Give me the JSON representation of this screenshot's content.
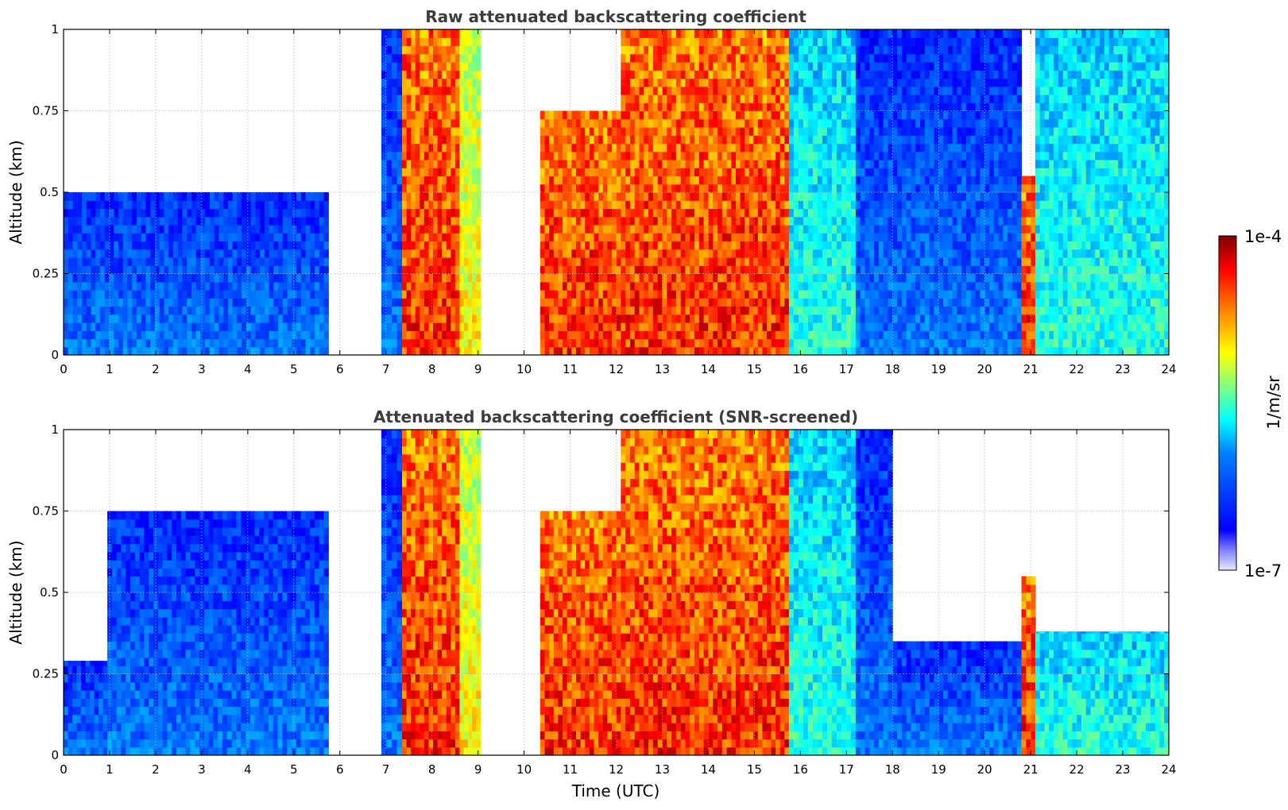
{
  "chart_data": [
    {
      "type": "heatmap",
      "title": "Raw attenuated backscattering coefficient",
      "xlabel": "",
      "ylabel": "Altitude (km)",
      "xlim": [
        0,
        24
      ],
      "ylim": [
        0,
        1
      ],
      "x_ticks": [
        "0",
        "1",
        "2",
        "3",
        "4",
        "5",
        "6",
        "7",
        "8",
        "9",
        "10",
        "11",
        "12",
        "13",
        "14",
        "15",
        "16",
        "17",
        "18",
        "19",
        "20",
        "21",
        "22",
        "23",
        "24"
      ],
      "y_ticks": [
        "0",
        "0.25",
        "0.5",
        "0.75",
        "1"
      ],
      "grid": true,
      "no_data_gaps_utc": [
        [
          5.75,
          6.9
        ],
        [
          9.05,
          10.35
        ]
      ],
      "regimes": [
        {
          "x": [
            0.0,
            5.75
          ],
          "level": "low",
          "ceiling_km": 0.5
        },
        {
          "x": [
            6.9,
            7.35
          ],
          "level": "low",
          "ceiling_km": 1.0
        },
        {
          "x": [
            7.35,
            8.6
          ],
          "level": "high",
          "ceiling_km": 1.0
        },
        {
          "x": [
            8.6,
            9.05
          ],
          "level": "medium-high",
          "ceiling_km": 1.0
        },
        {
          "x": [
            10.35,
            12.1
          ],
          "level": "high",
          "ceiling_km": 0.75
        },
        {
          "x": [
            12.1,
            14.5
          ],
          "level": "high",
          "ceiling_km": 1.0
        },
        {
          "x": [
            14.5,
            15.75
          ],
          "level": "high",
          "ceiling_km": 1.0
        },
        {
          "x": [
            15.75,
            17.2
          ],
          "level": "low-medium",
          "ceiling_km": 1.0
        },
        {
          "x": [
            17.2,
            20.8
          ],
          "level": "low",
          "ceiling_km": 1.0
        },
        {
          "x": [
            20.8,
            21.1
          ],
          "level": "high",
          "ceiling_km": 0.55
        },
        {
          "x": [
            21.1,
            24.0
          ],
          "level": "low-medium",
          "ceiling_km": 1.0
        }
      ]
    },
    {
      "type": "heatmap",
      "title": "Attenuated backscattering coefficient (SNR-screened)",
      "xlabel": "Time (UTC)",
      "ylabel": "Altitude (km)",
      "xlim": [
        0,
        24
      ],
      "ylim": [
        0,
        1
      ],
      "x_ticks": [
        "0",
        "1",
        "2",
        "3",
        "4",
        "5",
        "6",
        "7",
        "8",
        "9",
        "10",
        "11",
        "12",
        "13",
        "14",
        "15",
        "16",
        "17",
        "18",
        "19",
        "20",
        "21",
        "22",
        "23",
        "24"
      ],
      "y_ticks": [
        "0",
        "0.25",
        "0.5",
        "0.75",
        "1"
      ],
      "grid": true,
      "no_data_gaps_utc": [
        [
          5.75,
          6.9
        ],
        [
          9.05,
          10.35
        ]
      ],
      "regimes": [
        {
          "x": [
            0.0,
            0.95
          ],
          "level": "low",
          "ceiling_km": 0.29
        },
        {
          "x": [
            0.95,
            5.75
          ],
          "level": "low",
          "ceiling_km": 0.75
        },
        {
          "x": [
            6.9,
            7.35
          ],
          "level": "low",
          "ceiling_km": 1.0
        },
        {
          "x": [
            7.35,
            8.6
          ],
          "level": "high",
          "ceiling_km": 1.0
        },
        {
          "x": [
            8.6,
            9.05
          ],
          "level": "medium-high",
          "ceiling_km": 1.0
        },
        {
          "x": [
            10.35,
            12.1
          ],
          "level": "high",
          "ceiling_km": 0.75
        },
        {
          "x": [
            12.1,
            14.5
          ],
          "level": "high",
          "ceiling_km": 1.0
        },
        {
          "x": [
            14.5,
            15.75
          ],
          "level": "high",
          "ceiling_km": 1.0
        },
        {
          "x": [
            15.75,
            17.2
          ],
          "level": "low-medium",
          "ceiling_km": 1.0
        },
        {
          "x": [
            17.2,
            18.0
          ],
          "level": "low",
          "ceiling_km": 1.0
        },
        {
          "x": [
            18.0,
            20.8
          ],
          "level": "low",
          "ceiling_km": 0.35
        },
        {
          "x": [
            20.8,
            21.1
          ],
          "level": "high",
          "ceiling_km": 0.55
        },
        {
          "x": [
            21.1,
            24.0
          ],
          "level": "low-medium",
          "ceiling_km": 0.38
        }
      ]
    }
  ],
  "colorbar": {
    "label": "1/m/sr",
    "max_label": "1e-4",
    "min_label": "1e-7",
    "min": 1e-07,
    "max": 0.0001,
    "scale": "log",
    "colormap": "jet",
    "colormap_stops": [
      "#00007f",
      "#0000ff",
      "#0080ff",
      "#00ffff",
      "#80ff80",
      "#ffff00",
      "#ff8000",
      "#ff0000",
      "#7f0000"
    ]
  },
  "colors": {
    "title": "#3d3d3d",
    "grid": "#bbbbbb",
    "axis": "#000000",
    "background": "#ffffff"
  }
}
